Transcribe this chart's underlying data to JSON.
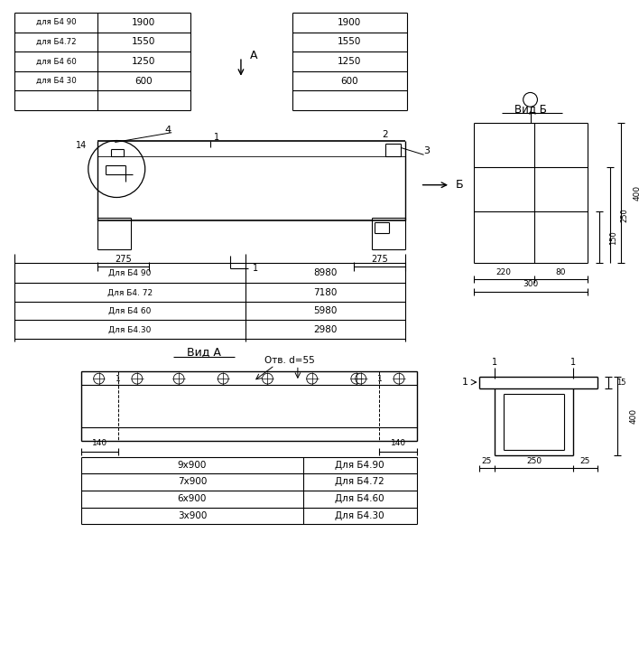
{
  "bg_color": "#ffffff",
  "line_color": "#000000",
  "font_size_label": 7.5,
  "font_size_dim": 7.0,
  "top_table_left_labels": [
    "для Б4 90",
    "для Б4.72",
    "для Б4 60",
    "для Б4 30"
  ],
  "top_table_left_vals": [
    "1900",
    "1550",
    "1250",
    "600"
  ],
  "top_table_right_vals": [
    "1900",
    "1550",
    "1250",
    "600"
  ],
  "bottom_row_labels": [
    "Для Б4 90",
    "Для Б4. 72",
    "Для Б4 60",
    "Для Б4.30"
  ],
  "bottom_row_vals": [
    "8980",
    "7180",
    "5980",
    "2980"
  ],
  "vid_b_title": "Вид Б",
  "vid_b_dims_side": [
    "150",
    "250",
    "400"
  ],
  "vid_b_dims_bot": [
    "220",
    "80",
    "300"
  ],
  "vid_a_title": "Вид A",
  "vid_a_annotation": "Отв. d=55",
  "vid_a_dim": "140",
  "bt_labels_l": [
    "9х900",
    "7х900",
    "6х900",
    "3х900"
  ],
  "bt_labels_r": [
    "Для Б4.90",
    "Для Б4.72",
    "Для Б4.60",
    "Для Б4.30"
  ],
  "v1_dims_top": [
    "1",
    "1"
  ],
  "v1_dims_side": [
    "15",
    "400"
  ],
  "v1_dims_bot": [
    "25",
    "250",
    "25"
  ],
  "label_14": "14",
  "label_4": "4",
  "label_1": "1",
  "label_2": "2",
  "label_3": "3",
  "label_B": "Б",
  "label_A": "A",
  "dim_275": "275"
}
